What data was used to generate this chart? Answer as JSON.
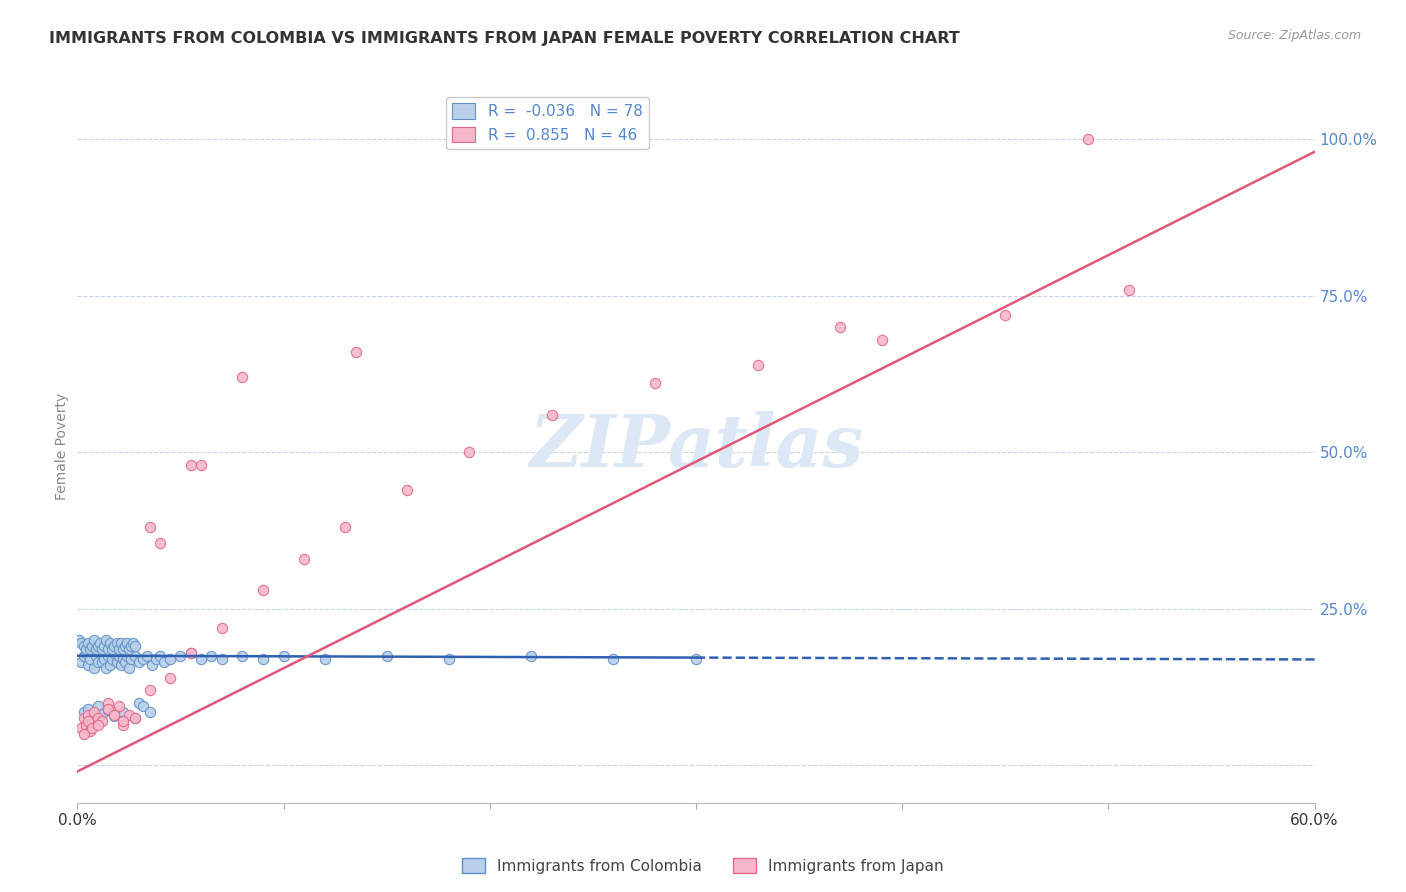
{
  "title": "IMMIGRANTS FROM COLOMBIA VS IMMIGRANTS FROM JAPAN FEMALE POVERTY CORRELATION CHART",
  "source": "Source: ZipAtlas.com",
  "ylabel": "Female Poverty",
  "right_yticks": [
    0.0,
    0.25,
    0.5,
    0.75,
    1.0
  ],
  "right_yticklabels": [
    "",
    "25.0%",
    "50.0%",
    "75.0%",
    "100.0%"
  ],
  "xlim": [
    0.0,
    0.6
  ],
  "ylim": [
    -0.06,
    1.08
  ],
  "colombia_R": -0.036,
  "colombia_N": 78,
  "japan_R": 0.855,
  "japan_N": 46,
  "colombia_color": "#b8d0e8",
  "japan_color": "#f5b8c8",
  "colombia_edge_color": "#6090c8",
  "japan_edge_color": "#e06888",
  "colombia_line_color": "#3060b0",
  "japan_line_color": "#e05878",
  "watermark_color": "#dce8f5",
  "grid_color": "#c8d4e4",
  "colombia_x": [
    0.002,
    0.003,
    0.004,
    0.005,
    0.006,
    0.007,
    0.008,
    0.009,
    0.01,
    0.011,
    0.012,
    0.013,
    0.014,
    0.015,
    0.016,
    0.017,
    0.018,
    0.019,
    0.02,
    0.021,
    0.022,
    0.023,
    0.024,
    0.025,
    0.026,
    0.028,
    0.03,
    0.032,
    0.034,
    0.036,
    0.038,
    0.04,
    0.042,
    0.045,
    0.05,
    0.055,
    0.06,
    0.065,
    0.07,
    0.08,
    0.09,
    0.1,
    0.12,
    0.15,
    0.18,
    0.22,
    0.26,
    0.3,
    0.001,
    0.002,
    0.003,
    0.004,
    0.005,
    0.006,
    0.007,
    0.008,
    0.009,
    0.01,
    0.011,
    0.012,
    0.013,
    0.014,
    0.015,
    0.016,
    0.017,
    0.018,
    0.019,
    0.02,
    0.021,
    0.022,
    0.023,
    0.024,
    0.025,
    0.026,
    0.027,
    0.028,
    0.03,
    0.032,
    0.035
  ],
  "colombia_y": [
    0.165,
    0.175,
    0.18,
    0.16,
    0.17,
    0.185,
    0.155,
    0.175,
    0.165,
    0.18,
    0.165,
    0.17,
    0.155,
    0.175,
    0.16,
    0.17,
    0.18,
    0.165,
    0.175,
    0.16,
    0.17,
    0.165,
    0.175,
    0.155,
    0.17,
    0.175,
    0.165,
    0.17,
    0.175,
    0.16,
    0.17,
    0.175,
    0.165,
    0.17,
    0.175,
    0.18,
    0.17,
    0.175,
    0.17,
    0.175,
    0.17,
    0.175,
    0.17,
    0.175,
    0.17,
    0.175,
    0.17,
    0.17,
    0.2,
    0.195,
    0.19,
    0.185,
    0.195,
    0.185,
    0.19,
    0.2,
    0.185,
    0.19,
    0.195,
    0.185,
    0.19,
    0.2,
    0.185,
    0.195,
    0.185,
    0.19,
    0.195,
    0.185,
    0.195,
    0.185,
    0.19,
    0.195,
    0.185,
    0.19,
    0.195,
    0.19,
    0.1,
    0.095,
    0.085
  ],
  "colombia_x_low": [
    0.003,
    0.005,
    0.008,
    0.01,
    0.012,
    0.015,
    0.018,
    0.022,
    0.028
  ],
  "colombia_y_low": [
    0.085,
    0.09,
    0.08,
    0.095,
    0.082,
    0.088,
    0.078,
    0.085,
    0.075
  ],
  "japan_x": [
    0.002,
    0.003,
    0.004,
    0.005,
    0.006,
    0.007,
    0.008,
    0.01,
    0.012,
    0.015,
    0.018,
    0.02,
    0.022,
    0.025,
    0.035,
    0.04,
    0.055,
    0.06,
    0.08,
    0.135,
    0.37,
    0.49
  ],
  "japan_y": [
    0.06,
    0.075,
    0.065,
    0.08,
    0.055,
    0.07,
    0.085,
    0.075,
    0.07,
    0.1,
    0.085,
    0.095,
    0.065,
    0.08,
    0.38,
    0.355,
    0.48,
    0.48,
    0.62,
    0.66,
    0.7,
    1.0
  ],
  "japan_extra_x": [
    0.003,
    0.005,
    0.007,
    0.01,
    0.015,
    0.018,
    0.022,
    0.028,
    0.035,
    0.045,
    0.055,
    0.07,
    0.09,
    0.11,
    0.13,
    0.16,
    0.19,
    0.23,
    0.28,
    0.33,
    0.39,
    0.45,
    0.51
  ],
  "japan_extra_y": [
    0.05,
    0.07,
    0.06,
    0.065,
    0.09,
    0.08,
    0.07,
    0.075,
    0.12,
    0.14,
    0.18,
    0.22,
    0.28,
    0.33,
    0.38,
    0.44,
    0.5,
    0.56,
    0.61,
    0.64,
    0.68,
    0.72,
    0.76
  ],
  "colombia_trendline_x": [
    0.0,
    0.3,
    0.31,
    0.6
  ],
  "colombia_trendline_style": [
    "solid",
    "dashed"
  ],
  "japan_trendline_x": [
    0.0,
    0.6
  ],
  "japan_trendline_slope": 1.65,
  "japan_trendline_intercept": -0.01
}
